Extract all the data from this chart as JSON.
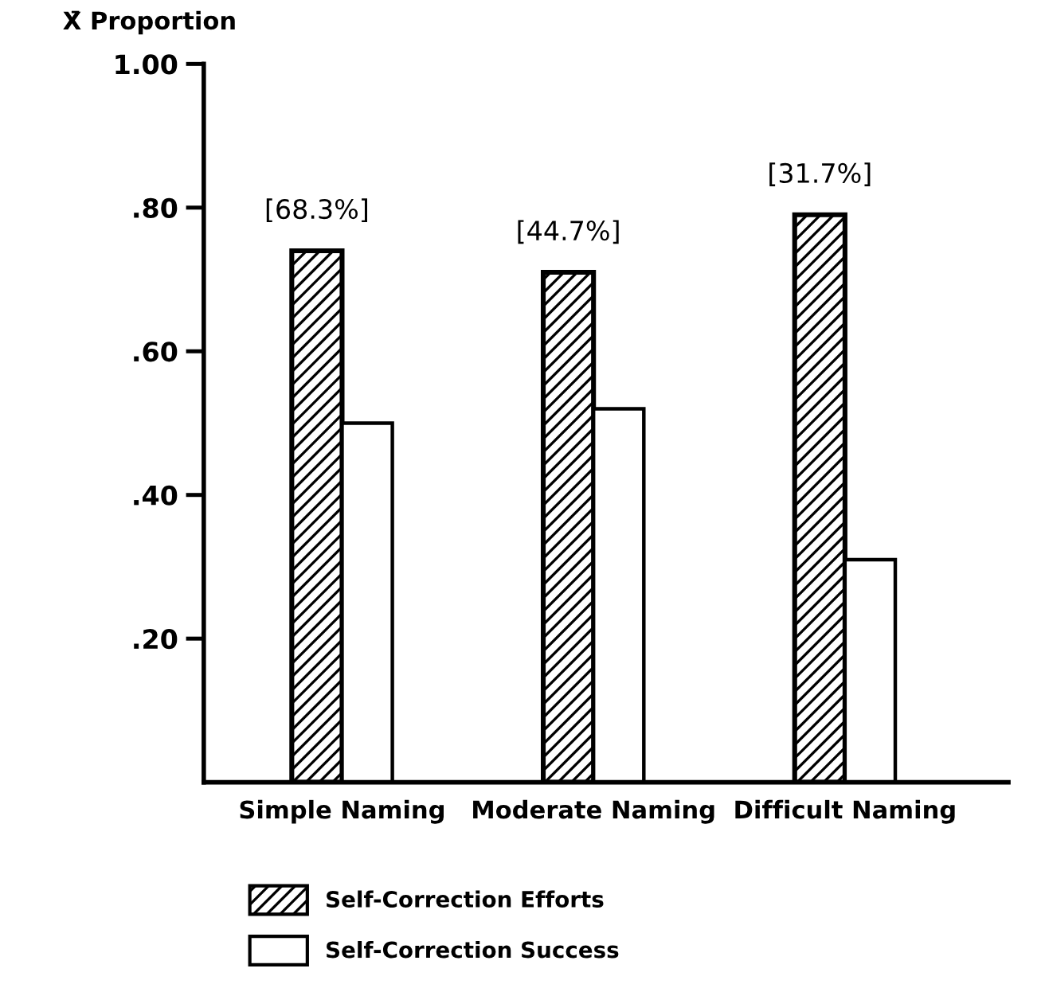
{
  "chart_data": {
    "type": "bar",
    "ylabel": "X̄ Proportion",
    "categories": [
      "Simple Naming",
      "Moderate Naming",
      "Difficult Naming"
    ],
    "series": [
      {
        "name": "Self-Correction Efforts",
        "color": "#000000",
        "values": [
          0.74,
          0.71,
          0.79
        ]
      },
      {
        "name": "Self-Correction Success",
        "color": "#ffffff",
        "values": [
          0.5,
          0.52,
          0.31
        ]
      }
    ],
    "ylim": [
      0,
      1.0
    ],
    "yticks": [
      {
        "value": 0.2,
        "label": ".20"
      },
      {
        "value": 0.4,
        "label": ".40"
      },
      {
        "value": 0.6,
        "label": ".60"
      },
      {
        "value": 0.8,
        "label": ".80"
      },
      {
        "value": 1.0,
        "label": "1.00"
      }
    ],
    "annotations": [
      {
        "text": "[68.3%]",
        "x": "Simple Naming",
        "y": 0.74
      },
      {
        "text": "[44.7%]",
        "x": "Moderate Naming",
        "y": 0.71
      },
      {
        "text": "[31.7%]",
        "x": "Difficult Naming",
        "y": 0.79
      }
    ],
    "grid": false,
    "legend": "bottom"
  }
}
